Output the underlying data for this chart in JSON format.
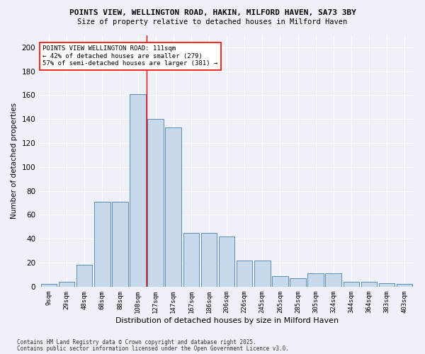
{
  "title1": "POINTS VIEW, WELLINGTON ROAD, HAKIN, MILFORD HAVEN, SA73 3BY",
  "title2": "Size of property relative to detached houses in Milford Haven",
  "xlabel": "Distribution of detached houses by size in Milford Haven",
  "ylabel": "Number of detached properties",
  "categories": [
    "9sqm",
    "29sqm",
    "48sqm",
    "68sqm",
    "88sqm",
    "108sqm",
    "127sqm",
    "147sqm",
    "167sqm",
    "186sqm",
    "206sqm",
    "226sqm",
    "245sqm",
    "265sqm",
    "285sqm",
    "305sqm",
    "324sqm",
    "344sqm",
    "364sqm",
    "383sqm",
    "403sqm"
  ],
  "values": [
    2,
    4,
    18,
    71,
    71,
    161,
    140,
    133,
    45,
    45,
    42,
    22,
    22,
    9,
    7,
    11,
    11,
    4,
    4,
    3,
    2
  ],
  "bar_color": "#c9d9ec",
  "bar_edge_color": "#5b8db8",
  "ylim": [
    0,
    210
  ],
  "yticks": [
    0,
    20,
    40,
    60,
    80,
    100,
    120,
    140,
    160,
    180,
    200
  ],
  "vline_x": 5.5,
  "vline_color": "red",
  "annotation_text": "POINTS VIEW WELLINGTON ROAD: 111sqm\n← 42% of detached houses are smaller (279)\n57% of semi-detached houses are larger (381) →",
  "annotation_box_color": "white",
  "annotation_box_edgecolor": "red",
  "footer1": "Contains HM Land Registry data © Crown copyright and database right 2025.",
  "footer2": "Contains public sector information licensed under the Open Government Licence v3.0.",
  "bg_color": "#eef2f8",
  "plot_bg_color": "#eef2f8"
}
